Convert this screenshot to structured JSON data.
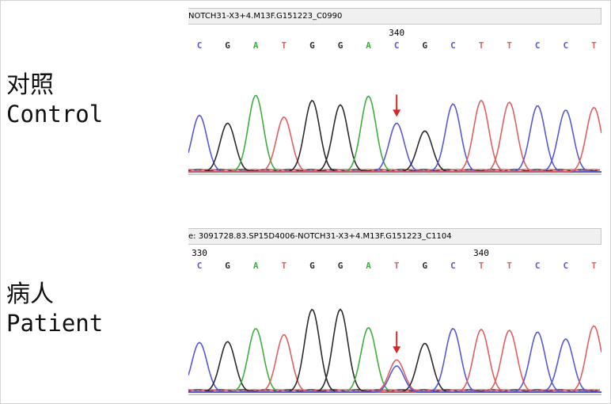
{
  "panels": [
    {
      "label_zh": "对照",
      "label_en": "Control",
      "header": "NOTCH31-X3+4.M13F.G151223_C0990",
      "positions": [
        {
          "text": "340",
          "base_index": 7
        }
      ],
      "bases": [
        "C",
        "G",
        "A",
        "T",
        "G",
        "G",
        "A",
        "C",
        "G",
        "C",
        "T",
        "T",
        "C",
        "C",
        "T"
      ],
      "mutation_index": 7,
      "heights": [
        0.65,
        0.56,
        0.88,
        0.63,
        0.82,
        0.77,
        0.87,
        0.56,
        0.47,
        0.78,
        0.82,
        0.8,
        0.76,
        0.71,
        0.74
      ],
      "secondary": []
    },
    {
      "label_zh": "病人",
      "label_en": "Patient",
      "header": "e: 3091728.83.SP15D4006-NOTCH31-X3+4.M13F.G151223_C1104",
      "positions": [
        {
          "text": "330",
          "base_index": 0
        },
        {
          "text": "340",
          "base_index": 10
        }
      ],
      "bases": [
        "C",
        "G",
        "A",
        "T",
        "G",
        "G",
        "A",
        "T",
        "G",
        "C",
        "T",
        "T",
        "C",
        "C",
        "T"
      ],
      "mutation_index": 7,
      "heights": [
        0.57,
        0.58,
        0.73,
        0.66,
        0.95,
        0.95,
        0.74,
        0.37,
        0.56,
        0.73,
        0.72,
        0.71,
        0.69,
        0.61,
        0.76
      ],
      "secondary": [
        {
          "base_index": 7,
          "base": "C",
          "height": 0.3
        }
      ]
    }
  ],
  "chart_data": [
    {
      "type": "line",
      "series": [
        {
          "name": "A",
          "color": "#3fae3f"
        },
        {
          "name": "C",
          "color": "#5858d8"
        },
        {
          "name": "G",
          "color": "#2b2b2b"
        },
        {
          "name": "T",
          "color": "#e06060"
        }
      ],
      "bases": [
        "C",
        "G",
        "A",
        "T",
        "G",
        "G",
        "A",
        "C",
        "G",
        "C",
        "T",
        "T",
        "C",
        "C",
        "T"
      ],
      "peak_heights": [
        0.65,
        0.56,
        0.88,
        0.63,
        0.82,
        0.77,
        0.87,
        0.56,
        0.47,
        0.78,
        0.82,
        0.8,
        0.76,
        0.71,
        0.74
      ],
      "grid": false
    },
    {
      "type": "line",
      "series": [
        {
          "name": "A",
          "color": "#3fae3f"
        },
        {
          "name": "C",
          "color": "#5858d8"
        },
        {
          "name": "G",
          "color": "#2b2b2b"
        },
        {
          "name": "T",
          "color": "#e06060"
        }
      ],
      "bases": [
        "C",
        "G",
        "A",
        "T",
        "G",
        "G",
        "A",
        "T",
        "G",
        "C",
        "T",
        "T",
        "C",
        "C",
        "T"
      ],
      "peak_heights": [
        0.57,
        0.58,
        0.73,
        0.66,
        0.95,
        0.95,
        0.74,
        0.37,
        0.56,
        0.73,
        0.72,
        0.71,
        0.69,
        0.61,
        0.76
      ],
      "grid": false
    }
  ],
  "colors": {
    "A": "#3fae3f",
    "C": "#5858d8",
    "G": "#2b2b2b",
    "T": "#e06060",
    "arrow": "#d62828"
  }
}
